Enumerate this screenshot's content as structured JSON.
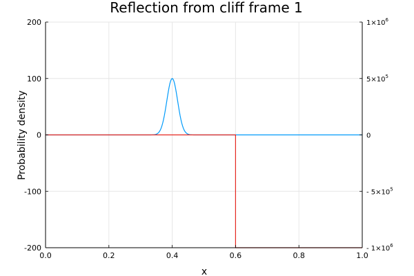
{
  "chart_data": {
    "type": "line",
    "title": "Reflection from cliff frame 1",
    "xlabel": "x",
    "ylabel": "Probability density",
    "xlim": [
      0.0,
      1.0
    ],
    "ylim": [
      -200,
      200
    ],
    "y2lim": [
      -1000000,
      1000000
    ],
    "grid": true,
    "legend": "none",
    "x_ticks": [
      "0.0",
      "0.2",
      "0.4",
      "0.6",
      "0.8",
      "1.0"
    ],
    "y_ticks": [
      "200",
      "100",
      "0",
      "-100",
      "-200"
    ],
    "y2_ticks": [
      {
        "value": 1000000,
        "mantissa": "1",
        "exponent": "6"
      },
      {
        "value": 500000,
        "mantissa": "5",
        "exponent": "5"
      },
      {
        "value": 0,
        "mantissa": "0",
        "exponent": ""
      },
      {
        "value": -500000,
        "mantissa": "- 5",
        "exponent": "5"
      },
      {
        "value": -1000000,
        "mantissa": "- 1",
        "exponent": "6"
      }
    ],
    "series": [
      {
        "axis": "left",
        "color": "#009AFA",
        "kind": "gaussian",
        "peak_x": 0.4,
        "peak_y": 100,
        "sigma": 0.017
      },
      {
        "axis": "right",
        "color": "#E6261F",
        "kind": "step",
        "x": [
          0.0,
          0.6,
          0.6,
          1.0
        ],
        "y": [
          0,
          0,
          -1000000,
          -1000000
        ]
      }
    ]
  }
}
